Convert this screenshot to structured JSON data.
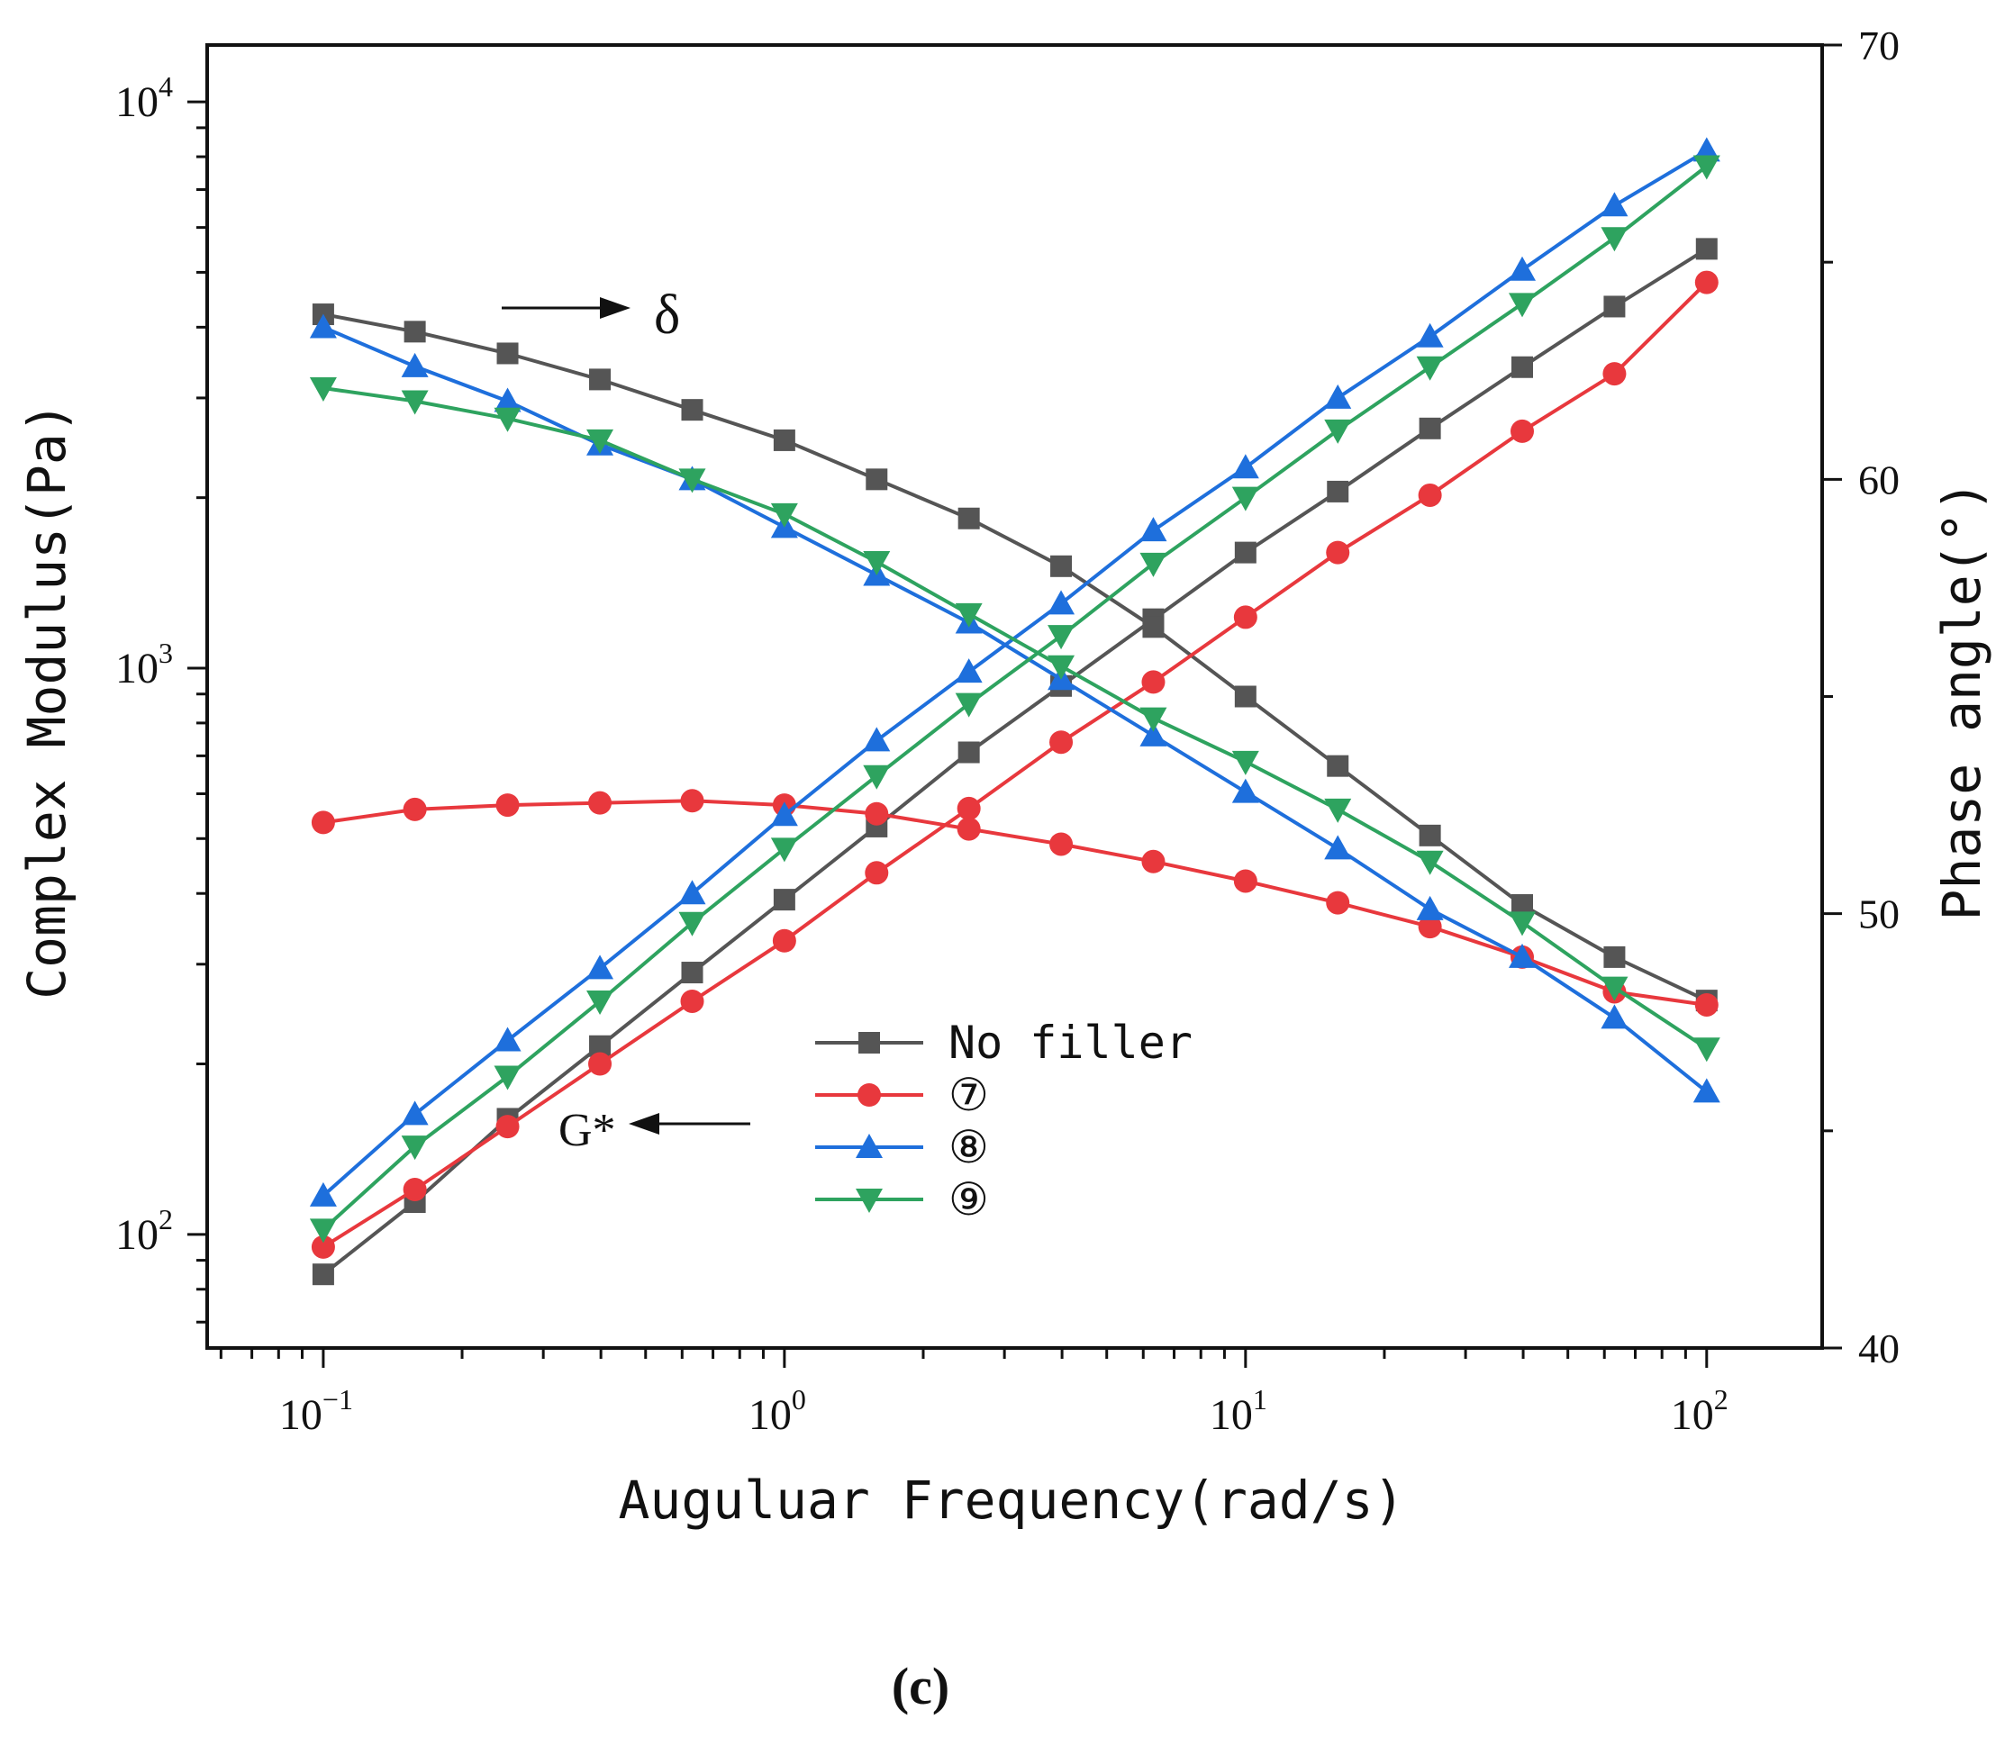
{
  "chart_data": {
    "type": "line",
    "title": "",
    "panel_label": "(c)",
    "xlabel": "Auguluar Frequency(rad/s)",
    "ylabel_left": "Complex Modulus(Pa)",
    "ylabel_right": "Phase angle(°)",
    "x_scale": "log",
    "y_left_scale": "log",
    "xlim": [
      0.056,
      178
    ],
    "ylim_left": [
      63,
      12600
    ],
    "ylim_right": [
      40,
      70
    ],
    "x_ticks": [
      {
        "value": 0.1,
        "base": "10",
        "exp": "−1"
      },
      {
        "value": 1,
        "base": "10",
        "exp": "0"
      },
      {
        "value": 10,
        "base": "10",
        "exp": "1"
      },
      {
        "value": 100,
        "base": "10",
        "exp": "2"
      }
    ],
    "y_left_ticks": [
      {
        "value": 100,
        "base": "10",
        "exp": "2"
      },
      {
        "value": 1000,
        "base": "10",
        "exp": "3"
      },
      {
        "value": 10000,
        "base": "10",
        "exp": "4"
      }
    ],
    "y_right_ticks": [
      {
        "value": 40,
        "label": "40"
      },
      {
        "value": 50,
        "label": "50"
      },
      {
        "value": 60,
        "label": "60"
      },
      {
        "value": 70,
        "label": "70"
      }
    ],
    "x": [
      0.1,
      0.158,
      0.251,
      0.398,
      0.631,
      1.0,
      1.585,
      2.512,
      3.981,
      6.31,
      10.0,
      15.85,
      25.12,
      39.81,
      63.1,
      100.0
    ],
    "annotations": [
      {
        "text": "δ",
        "arrow": "right",
        "meaning": "phase angle curves read on right axis"
      },
      {
        "text": "G*",
        "arrow": "left",
        "meaning": "complex modulus curves read on left axis"
      }
    ],
    "legend_position": "center-bottom",
    "series": [
      {
        "name": "No filler",
        "color": "#555555",
        "marker": "square",
        "modulus_values": [
          85,
          114,
          160,
          215,
          290,
          390,
          525,
          710,
          930,
          1220,
          1600,
          2050,
          2650,
          3400,
          4350,
          5500
        ],
        "phase_values": [
          63.8,
          63.4,
          62.9,
          62.3,
          61.6,
          60.9,
          60.0,
          59.1,
          58.0,
          56.6,
          55.0,
          53.4,
          51.8,
          50.2,
          49.0,
          48.0
        ]
      },
      {
        "name": "⑦",
        "color": "#e8383d",
        "marker": "circle",
        "modulus_values": [
          95,
          120,
          155,
          200,
          258,
          330,
          435,
          565,
          740,
          945,
          1230,
          1600,
          2020,
          2620,
          3310,
          4800
        ],
        "phase_values": [
          52.1,
          52.4,
          52.5,
          52.55,
          52.6,
          52.5,
          52.3,
          51.95,
          51.6,
          51.2,
          50.75,
          50.25,
          49.7,
          49.0,
          48.2,
          47.9
        ]
      },
      {
        "name": "⑧",
        "color": "#1e6fdc",
        "marker": "triangle-up",
        "modulus_values": [
          117,
          163,
          220,
          295,
          400,
          550,
          745,
          985,
          1300,
          1750,
          2260,
          3000,
          3850,
          5050,
          6560,
          8200
        ],
        "phase_values": [
          63.5,
          62.6,
          61.8,
          60.8,
          60.0,
          58.9,
          57.8,
          56.7,
          55.4,
          54.1,
          52.8,
          51.5,
          50.1,
          49.0,
          47.6,
          45.9
        ]
      },
      {
        "name": "⑨",
        "color": "#2ea35f",
        "marker": "triangle-down",
        "modulus_values": [
          102,
          143,
          190,
          258,
          355,
          480,
          645,
          865,
          1140,
          1530,
          2000,
          2630,
          3400,
          4400,
          5750,
          7700
        ],
        "phase_values": [
          62.1,
          61.8,
          61.4,
          60.9,
          60.0,
          59.2,
          58.1,
          56.9,
          55.7,
          54.5,
          53.5,
          52.4,
          51.2,
          49.8,
          48.3,
          46.9
        ]
      }
    ]
  }
}
